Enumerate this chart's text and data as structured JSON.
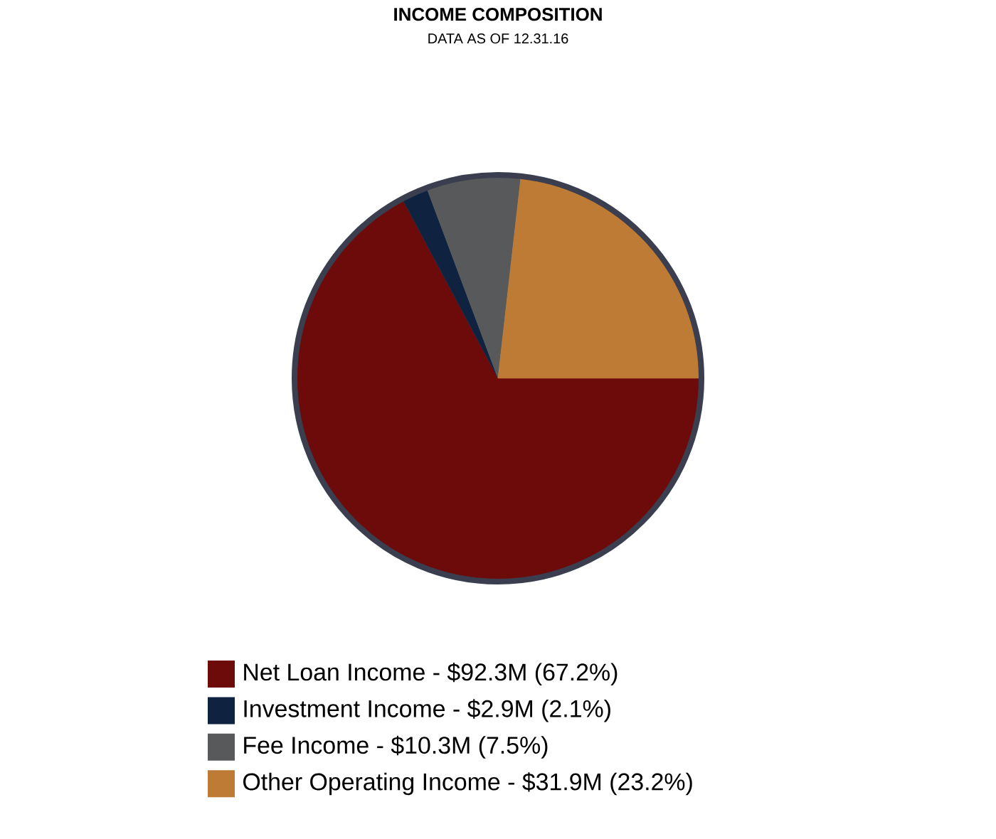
{
  "chart_data": {
    "type": "pie",
    "title": "INCOME COMPOSITION",
    "subtitle": "DATA AS OF 12.31.16",
    "categories": [
      "Net Loan Income - $92.3M (67.2%)",
      "Investment Income - $2.9M (2.1%)",
      "Fee Income - $10.3M (7.5%)",
      "Other Operating Income - $31.9M (23.2%)"
    ],
    "values": [
      67.2,
      2.1,
      7.5,
      23.2
    ],
    "colors": [
      "#6d0a0a",
      "#0f2340",
      "#58595b",
      "#bd7b35"
    ],
    "legend": "bottom"
  }
}
